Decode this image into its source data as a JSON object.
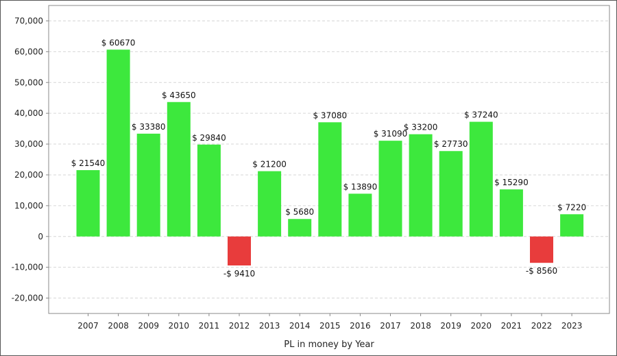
{
  "chart_data": {
    "type": "bar",
    "title": "",
    "xlabel": "PL in money by Year",
    "ylabel": "",
    "categories": [
      "2007",
      "2008",
      "2009",
      "2010",
      "2011",
      "2012",
      "2013",
      "2014",
      "2015",
      "2016",
      "2017",
      "2018",
      "2019",
      "2020",
      "2021",
      "2022",
      "2023"
    ],
    "values": [
      21540,
      60670,
      33380,
      43650,
      29840,
      -9410,
      21200,
      5680,
      37080,
      13890,
      31090,
      33200,
      27730,
      37240,
      15290,
      -8560,
      7220
    ],
    "data_labels": [
      "$ 21540",
      "$ 60670",
      "$ 33380",
      "$ 43650",
      "$ 29840",
      "-$ 9410",
      "$ 21200",
      "$ 5680",
      "$ 37080",
      "$ 13890",
      "$ 31090",
      "$ 33200",
      "$ 27730",
      "$ 37240",
      "$ 15290",
      "-$ 8560",
      "$ 7220"
    ],
    "ylim": [
      -25000,
      75000
    ],
    "yticks": [
      -20000,
      -10000,
      0,
      10000,
      20000,
      30000,
      40000,
      50000,
      60000,
      70000
    ],
    "ytick_labels": [
      "-20,000",
      "-10,000",
      "0",
      "10,000",
      "20,000",
      "30,000",
      "40,000",
      "50,000",
      "60,000",
      "70,000"
    ],
    "grid": true,
    "colors": {
      "positive": "#3de83d",
      "negative": "#e83c3c",
      "grid": "#d6d6d6",
      "axis": "#888888"
    }
  }
}
